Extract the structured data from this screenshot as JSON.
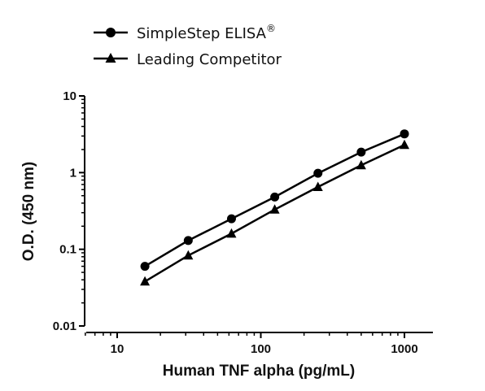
{
  "chart_data": {
    "type": "line",
    "xlabel": "Human TNF alpha (pg/mL)",
    "ylabel": "O.D. (450 nm)",
    "xscale": "log",
    "yscale": "log",
    "xlim": [
      6,
      1600
    ],
    "ylim": [
      0.01,
      10
    ],
    "xticks": [
      10,
      100,
      1000
    ],
    "xtick_labels": [
      "10",
      "100",
      "1000"
    ],
    "yticks": [
      0.01,
      0.1,
      1,
      10
    ],
    "ytick_labels": [
      "0.01",
      "0.1",
      "1",
      "10"
    ],
    "legend": {
      "position": "top-left",
      "entries": [
        {
          "label": "SimpleStep ELISA",
          "suffix": "®",
          "marker": "circle"
        },
        {
          "label": "Leading Competitor",
          "suffix": "",
          "marker": "triangle"
        }
      ]
    },
    "x": [
      15.6,
      31.25,
      62.5,
      125,
      250,
      500,
      1000
    ],
    "series": [
      {
        "name": "SimpleStep ELISA®",
        "marker": "circle",
        "values": [
          0.06,
          0.13,
          0.25,
          0.48,
          0.98,
          1.85,
          3.2
        ]
      },
      {
        "name": "Leading Competitor",
        "marker": "triangle",
        "values": [
          0.038,
          0.083,
          0.16,
          0.33,
          0.65,
          1.25,
          2.3
        ]
      }
    ],
    "grid": false,
    "colors": {
      "line": "#000000",
      "marker": "#000000",
      "text": "#111111"
    }
  }
}
